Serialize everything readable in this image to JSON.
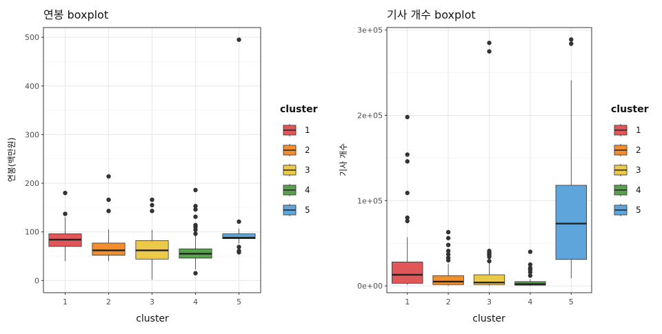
{
  "chart_data": [
    {
      "type": "boxplot",
      "title": "연봉 boxplot",
      "xlabel": "cluster",
      "ylabel": "연봉(백만원)",
      "categories": [
        "1",
        "2",
        "3",
        "4",
        "5"
      ],
      "ylim": [
        -25,
        520
      ],
      "yticks": [
        0,
        100,
        200,
        300,
        400,
        500
      ],
      "ytick_labels": [
        "0",
        "100",
        "200",
        "300",
        "400",
        "500"
      ],
      "grid": true,
      "legend_position": "right",
      "boxes": [
        {
          "name": "1",
          "color": "#E15759",
          "whisker_low": 40,
          "q1": 70,
          "median": 84,
          "q3": 96,
          "whisker_high": 130,
          "outliers": [
            137,
            180
          ]
        },
        {
          "name": "2",
          "color": "#F28E2B",
          "whisker_low": 40,
          "q1": 52,
          "median": 62,
          "q3": 77,
          "whisker_high": 105,
          "outliers": [
            143,
            166,
            214
          ]
        },
        {
          "name": "3",
          "color": "#EDC948",
          "whisker_low": 2,
          "q1": 44,
          "median": 62,
          "q3": 82,
          "whisker_high": 104,
          "outliers": [
            143,
            155,
            166
          ]
        },
        {
          "name": "4",
          "color": "#59A14F",
          "whisker_low": 23,
          "q1": 46,
          "median": 55,
          "q3": 65,
          "whisker_high": 93,
          "outliers": [
            15,
            96,
            104,
            110,
            114,
            131,
            146,
            153,
            186
          ]
        },
        {
          "name": "5",
          "color": "#5DA5DA",
          "whisker_low": 76,
          "q1": 86,
          "median": 88,
          "q3": 96,
          "whisker_high": 107,
          "outliers": [
            58,
            61,
            69,
            121,
            495
          ]
        }
      ]
    },
    {
      "type": "boxplot",
      "title": "기사 개수 boxplot",
      "xlabel": "cluster",
      "ylabel": "기사 개수",
      "categories": [
        "1",
        "2",
        "3",
        "4",
        "5"
      ],
      "ylim": [
        -8000,
        303000
      ],
      "yticks": [
        0,
        100000,
        200000,
        300000
      ],
      "ytick_labels": [
        "0e+00",
        "1e+05",
        "2e+05",
        "3e+05"
      ],
      "grid": true,
      "legend_position": "right",
      "boxes": [
        {
          "name": "1",
          "color": "#E15759",
          "whisker_low": 1500,
          "q1": 3000,
          "median": 13000,
          "q3": 28000,
          "whisker_high": 57000,
          "outliers": [
            76000,
            80000,
            109000,
            146000,
            154000,
            198000
          ]
        },
        {
          "name": "2",
          "color": "#F28E2B",
          "whisker_low": 200,
          "q1": 1500,
          "median": 5000,
          "q3": 12000,
          "whisker_high": 26000,
          "outliers": [
            30000,
            33000,
            37000,
            41000,
            48000,
            56000,
            63000
          ]
        },
        {
          "name": "3",
          "color": "#EDC948",
          "whisker_low": 200,
          "q1": 1500,
          "median": 4000,
          "q3": 13000,
          "whisker_high": 28000,
          "outliers": [
            29000,
            34000,
            36000,
            38000,
            39000,
            41000,
            275000,
            285000
          ]
        },
        {
          "name": "4",
          "color": "#59A14F",
          "whisker_low": 100,
          "q1": 800,
          "median": 2000,
          "q3": 5000,
          "whisker_high": 8000,
          "outliers": [
            12000,
            16000,
            19000,
            21000,
            25000,
            40000
          ]
        },
        {
          "name": "5",
          "color": "#5DA5DA",
          "whisker_low": 9000,
          "q1": 31000,
          "median": 73000,
          "q3": 118000,
          "whisker_high": 241000,
          "outliers": [
            284000,
            289000
          ]
        }
      ]
    }
  ],
  "legend": {
    "title": "cluster",
    "items": [
      {
        "label": "1",
        "color": "#E15759"
      },
      {
        "label": "2",
        "color": "#F28E2B"
      },
      {
        "label": "3",
        "color": "#EDC948"
      },
      {
        "label": "4",
        "color": "#59A14F"
      },
      {
        "label": "5",
        "color": "#5DA5DA"
      }
    ]
  }
}
